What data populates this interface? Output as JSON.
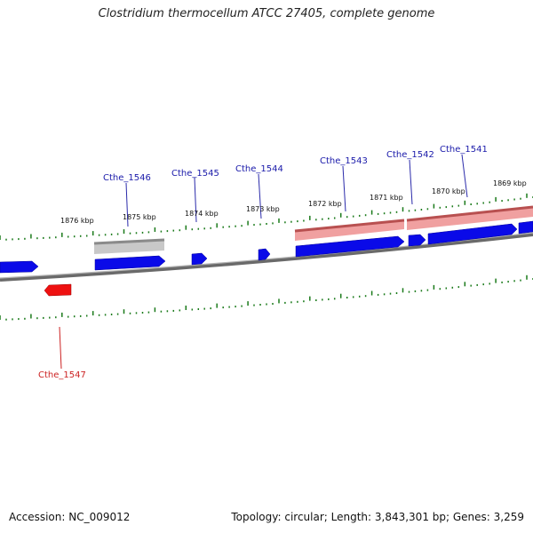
{
  "title": "Clostridium thermocellum ATCC 27405, complete genome",
  "footer": {
    "accession": "Accession: NC_009012",
    "summary": "Topology: circular; Length: 3,843,301 bp; Genes: 3,259"
  },
  "colors": {
    "forward_gene": "#0000ee",
    "reverse_gene": "#ee0000",
    "tick": "#1a7a1a",
    "backbone": "#808080",
    "label_forward": "#1a1aaa",
    "label_reverse": "#cc2222",
    "rrna_band": "#e88080",
    "gray_band": "#b0b0b0"
  },
  "scale_labels": [
    "1876 kbp",
    "1875 kbp",
    "1874 kbp",
    "1873 kbp",
    "1872 kbp",
    "1871 kbp",
    "1870 kbp",
    "1869 kbp"
  ],
  "gene_labels": [
    {
      "name": "Cthe_1546",
      "strand": "forward"
    },
    {
      "name": "Cthe_1545",
      "strand": "forward"
    },
    {
      "name": "Cthe_1544",
      "strand": "forward"
    },
    {
      "name": "Cthe_1543",
      "strand": "forward"
    },
    {
      "name": "Cthe_1542",
      "strand": "forward"
    },
    {
      "name": "Cthe_1541",
      "strand": "forward"
    },
    {
      "name": "Cthe_1547",
      "strand": "reverse"
    }
  ]
}
